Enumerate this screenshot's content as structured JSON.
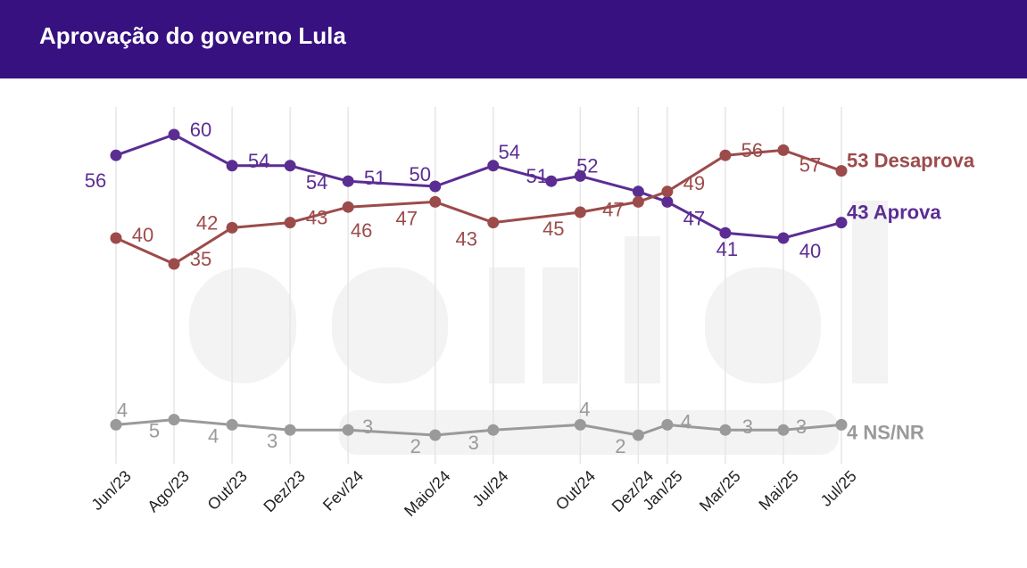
{
  "header": {
    "title": "Aprovação do governo Lula"
  },
  "colors": {
    "header": "#37117f",
    "aprova": "#5b2d93",
    "desaprova": "#9c4b4b",
    "nsnr": "#9a9a9a",
    "grid": "#e6e6e6"
  },
  "chart_data": {
    "type": "line",
    "x": [
      "2023-06",
      "2023-08",
      "2023-10",
      "2023-12",
      "2024-02",
      "2024-05",
      "2024-07",
      "2024-10",
      "2024-12",
      "2025-01",
      "2025-03",
      "2025-05",
      "2025-07"
    ],
    "tick_labels": [
      "Jun/23",
      "Ago/23",
      "Out/23",
      "Dez/23",
      "Fev/24",
      "Maio/24",
      "Jul/24",
      "Out/24",
      "Dez/24",
      "Jan/25",
      "Mar/25",
      "Mai/25",
      "Jul/25"
    ],
    "ylim": [
      0,
      65
    ],
    "grid": true,
    "series": [
      {
        "key": "aprova",
        "name": "Aprova",
        "end_label": "43 Aprova",
        "x": [
          "2023-06",
          "2023-08",
          "2023-10",
          "2023-12",
          "2024-02",
          "2024-05",
          "2024-07",
          "2024-09",
          "2024-10",
          "2024-12",
          "2025-01",
          "2025-03",
          "2025-05",
          "2025-07"
        ],
        "values": [
          56,
          60,
          54,
          54,
          51,
          50,
          54,
          51,
          52,
          49,
          47,
          41,
          40,
          43
        ]
      },
      {
        "key": "desaprova",
        "name": "Desaprova",
        "end_label": "53 Desaprova",
        "x": [
          "2023-06",
          "2023-08",
          "2023-10",
          "2023-12",
          "2024-02",
          "2024-05",
          "2024-07",
          "2024-10",
          "2024-12",
          "2025-01",
          "2025-03",
          "2025-05",
          "2025-07"
        ],
        "values": [
          40,
          35,
          42,
          43,
          46,
          47,
          43,
          45,
          47,
          49,
          56,
          57,
          53
        ]
      },
      {
        "key": "nsnr",
        "name": "NS/NR",
        "end_label": "4 NS/NR",
        "x": [
          "2023-06",
          "2023-08",
          "2023-10",
          "2023-12",
          "2024-02",
          "2024-05",
          "2024-07",
          "2024-10",
          "2024-12",
          "2025-01",
          "2025-03",
          "2025-05",
          "2025-07"
        ],
        "values": [
          4,
          5,
          4,
          3,
          3,
          2,
          3,
          4,
          2,
          4,
          3,
          3,
          4
        ]
      }
    ]
  }
}
